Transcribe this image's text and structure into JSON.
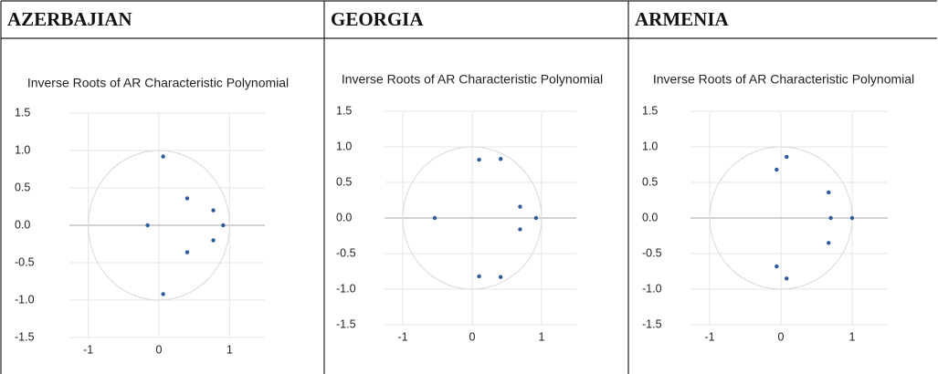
{
  "table": {
    "headers": [
      "AZERBAJIAN",
      "GEORGIA",
      "ARMENIA"
    ]
  },
  "chart_data": [
    {
      "type": "scatter",
      "title": "Inverse Roots of AR Characteristic Polynomial",
      "color": "#2e5b9c",
      "x": [
        0.06,
        0.4,
        0.77,
        0.91,
        -0.16,
        0.77,
        0.4,
        0.06
      ],
      "values": [
        0.92,
        0.36,
        0.2,
        0,
        0,
        -0.2,
        -0.36,
        -0.92
      ],
      "xlim": [
        -1.5,
        1.5
      ],
      "xticks": [
        -1,
        0,
        1
      ],
      "ylim": [
        -1.5,
        1.5
      ],
      "yticks": [
        1.5,
        {
          "value": 1,
          "label": "1.0"
        },
        0.5,
        {
          "value": 0,
          "label": "0.0"
        },
        -0.5,
        {
          "value": -1,
          "label": "-1.0"
        },
        -1.5
      ],
      "grid": true,
      "unit_circle": true
    },
    {
      "type": "scatter",
      "title": "Inverse Roots of AR Characteristic Polynomial",
      "color": "#2e5b9c",
      "x": [
        0.1,
        0.41,
        0.69,
        0.92,
        -0.54,
        0.69,
        0.1,
        0.41
      ],
      "values": [
        0.82,
        0.83,
        0.16,
        0,
        0,
        -0.16,
        -0.82,
        -0.83
      ],
      "xlim": [
        -1.5,
        1.5
      ],
      "xticks": [
        -1,
        0,
        1
      ],
      "ylim": [
        -1.5,
        1.5
      ],
      "yticks": [
        1.5,
        {
          "value": 1,
          "label": "1.0"
        },
        0.5,
        {
          "value": 0,
          "label": "0.0"
        },
        -0.5,
        {
          "value": -1,
          "label": "-1.0"
        },
        -1.5
      ],
      "grid": true,
      "unit_circle": true
    },
    {
      "type": "scatter",
      "title": "Inverse Roots of AR Characteristic Polynomial",
      "color": "#2e5b9c",
      "x": [
        -0.06,
        0.08,
        0.67,
        0.7,
        1.0,
        0.67,
        -0.06,
        0.08
      ],
      "values": [
        0.68,
        0.86,
        0.36,
        0,
        0,
        -0.35,
        -0.68,
        -0.85
      ],
      "xlim": [
        -1.5,
        1.5
      ],
      "xticks": [
        -1,
        0,
        1
      ],
      "ylim": [
        -1.5,
        1.5
      ],
      "yticks": [
        1.5,
        {
          "value": 1,
          "label": "1.0"
        },
        0.5,
        {
          "value": 0,
          "label": "0.0"
        },
        -0.5,
        {
          "value": -1,
          "label": "-1.0"
        },
        -1.5
      ],
      "grid": true,
      "unit_circle": true
    }
  ]
}
